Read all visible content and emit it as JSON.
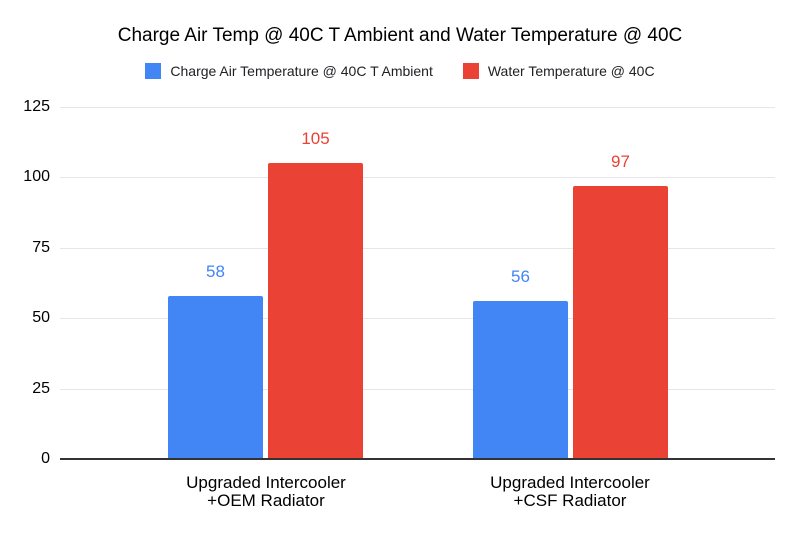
{
  "chart_data": {
    "type": "bar",
    "title": "Charge Air Temp @ 40C T Ambient and Water Temperature @ 40C",
    "categories": [
      "Upgraded Intercooler\n+OEM Radiator",
      "Upgraded Intercooler\n+CSF Radiator"
    ],
    "series": [
      {
        "name": "Charge Air Temperature @ 40C T Ambient",
        "color": "#4285F4",
        "values": [
          58,
          56
        ]
      },
      {
        "name": "Water Temperature @ 40C",
        "color": "#EA4335",
        "values": [
          105,
          97
        ]
      }
    ],
    "xlabel": "",
    "ylabel": "",
    "ylim": [
      0,
      125
    ],
    "yticks": [
      0,
      25,
      50,
      75,
      100,
      125
    ],
    "grid": true,
    "legend_position": "top",
    "data_labels": true,
    "colors": {
      "background": "#ffffff",
      "gridline": "#e6e6e6",
      "axis_line": "#333333",
      "title_text": "#000000",
      "axis_text": "#000000",
      "legend_text": "#202124"
    }
  }
}
